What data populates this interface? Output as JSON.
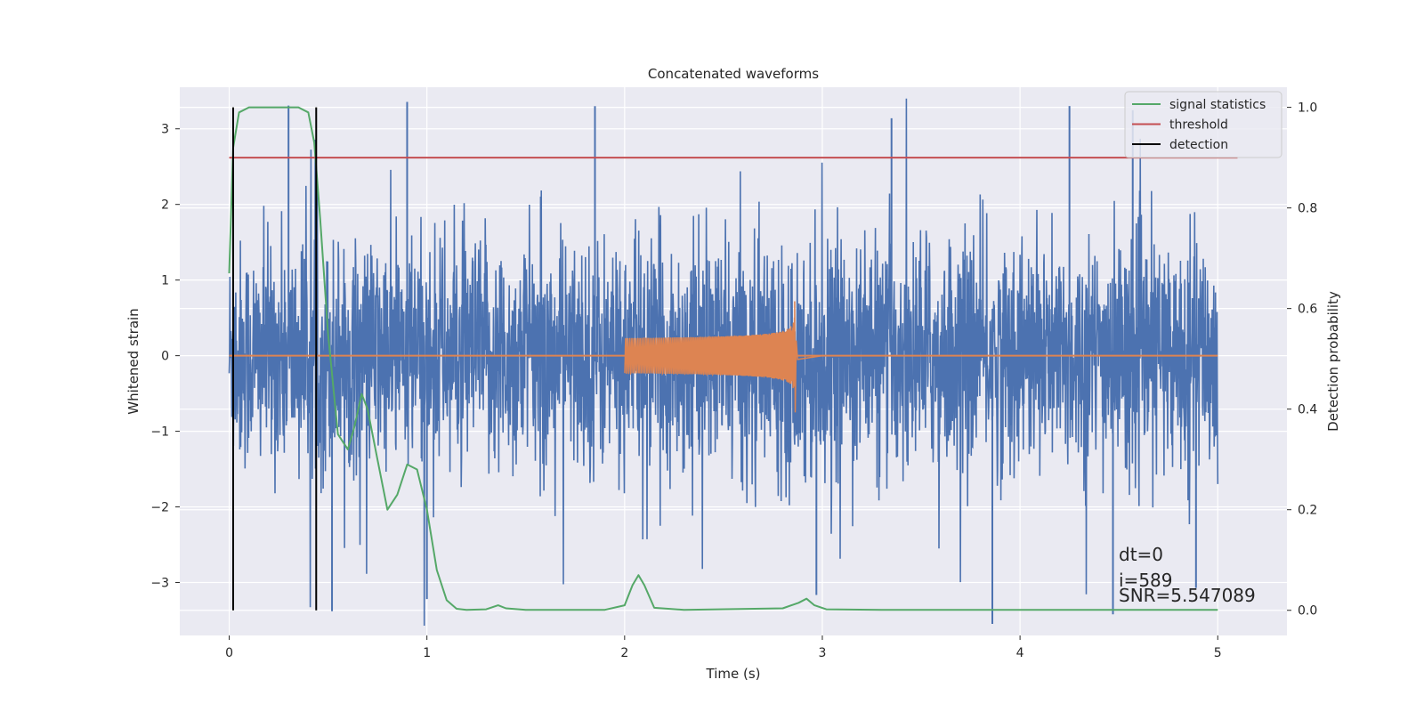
{
  "chart_data": {
    "type": "line",
    "title": "Concatenated waveforms",
    "xlabel": "Time (s)",
    "ylabel": "Whitened strain",
    "y2label": "Detection probability",
    "xlim": [
      -0.25,
      5.35
    ],
    "ylim": [
      -3.7,
      3.55
    ],
    "y2lim": [
      -0.05,
      1.04
    ],
    "grid": true,
    "x_ticks": [
      "0",
      "1",
      "2",
      "3",
      "4",
      "5"
    ],
    "x_tick_values": [
      0,
      1,
      2,
      3,
      4,
      5
    ],
    "y_ticks": [
      "3",
      "2",
      "1",
      "0",
      "−1",
      "−2",
      "−3"
    ],
    "y_tick_values": [
      3,
      2,
      1,
      0,
      -1,
      -2,
      -3
    ],
    "y2_ticks": [
      "1.0",
      "0.8",
      "0.6",
      "0.4",
      "0.2",
      "0.0"
    ],
    "y2_tick_values": [
      1.0,
      0.8,
      0.6,
      0.4,
      0.2,
      0.0
    ],
    "legend": {
      "location": "upper right",
      "entries": [
        "signal statistics",
        "threshold",
        "detection"
      ]
    },
    "colors": {
      "noise": "#4c72b0",
      "signal": "#dd8452",
      "signal_statistics": "#55a868",
      "threshold": "#c44e52",
      "detection": "#000000",
      "background": "#eaeaf2",
      "grid": "#ffffff"
    },
    "series": [
      {
        "name": "whitened noise",
        "axis": "left",
        "x_range": [
          0,
          5
        ],
        "envelope_typical": [
          -1.3,
          1.3
        ],
        "peak_max": 3.4,
        "peak_min": -3.6,
        "spike_times": [
          0.3,
          0.52,
          0.9,
          1.0,
          1.85,
          2.97,
          3.35,
          3.86,
          4.25,
          4.47,
          4.57,
          4.89
        ]
      },
      {
        "name": "injected chirp",
        "axis": "left",
        "x_range": [
          2.0,
          2.86
        ],
        "amplitude_start": 0.15,
        "amplitude_peak": 0.72,
        "amplitude_min": -0.75,
        "merger_time": 2.86
      },
      {
        "name": "signal statistics",
        "axis": "right",
        "x": [
          0,
          0.02,
          0.05,
          0.1,
          0.2,
          0.35,
          0.4,
          0.43,
          0.46,
          0.5,
          0.55,
          0.6,
          0.63,
          0.67,
          0.7,
          0.75,
          0.8,
          0.85,
          0.9,
          0.95,
          1.0,
          1.05,
          1.1,
          1.15,
          1.2,
          1.3,
          1.36,
          1.4,
          1.5,
          1.9,
          2.0,
          2.04,
          2.07,
          2.1,
          2.15,
          2.3,
          2.8,
          2.88,
          2.92,
          2.96,
          3.02,
          3.3,
          4.0,
          4.5,
          5.0
        ],
        "y": [
          0.67,
          0.92,
          0.99,
          1.0,
          1.0,
          1.0,
          0.99,
          0.93,
          0.78,
          0.55,
          0.35,
          0.32,
          0.36,
          0.43,
          0.4,
          0.3,
          0.2,
          0.23,
          0.29,
          0.28,
          0.2,
          0.08,
          0.02,
          0.003,
          0.001,
          0.002,
          0.01,
          0.004,
          0.001,
          0.001,
          0.01,
          0.05,
          0.07,
          0.05,
          0.005,
          0.001,
          0.004,
          0.015,
          0.023,
          0.01,
          0.002,
          0.001,
          0.001,
          0.001,
          0.001
        ]
      },
      {
        "name": "threshold",
        "axis": "right",
        "x": [
          0,
          5.1
        ],
        "y": [
          0.9,
          0.9
        ]
      }
    ],
    "detections": [
      0.02,
      0.44
    ],
    "annotations": [
      "dt=0",
      "i=589",
      "SNR=5.547089"
    ]
  }
}
